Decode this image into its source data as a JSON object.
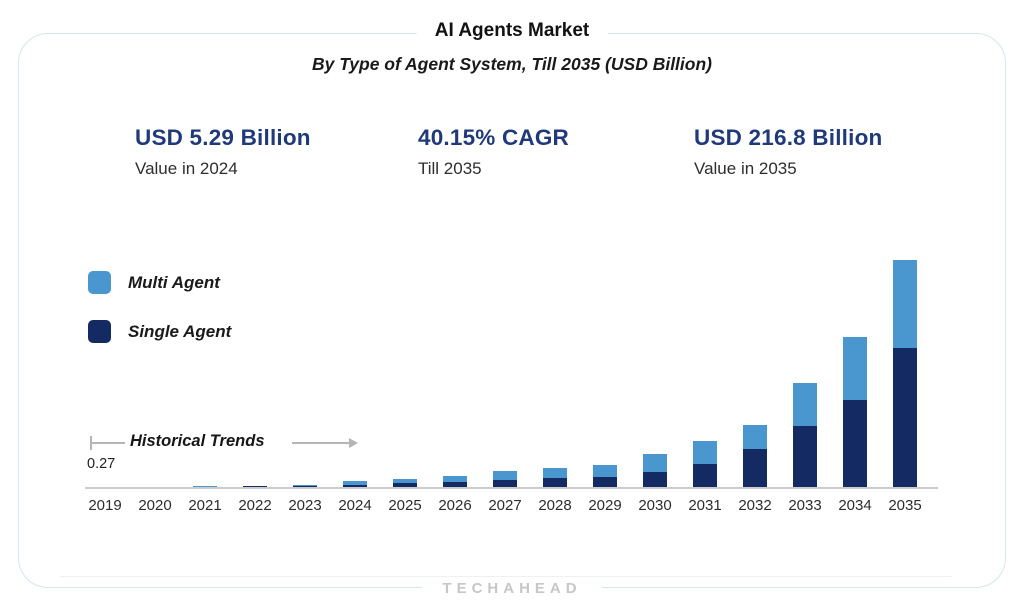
{
  "header": {
    "title": "AI Agents Market",
    "subtitle": "By Type of Agent System, Till 2035 (USD Billion)"
  },
  "stats": [
    {
      "value": "USD 5.29 Billion",
      "label": "Value in 2024"
    },
    {
      "value": "40.15% CAGR",
      "label": "Till 2035"
    },
    {
      "value": "USD 216.8 Billion",
      "label": "Value in 2035"
    }
  ],
  "legend": [
    {
      "label": "Multi Agent",
      "color": "#4a96cf"
    },
    {
      "label": "Single Agent",
      "color": "#132a63"
    }
  ],
  "annotation": {
    "text": "Historical Trends",
    "first_bar_label": "0.27"
  },
  "footer": {
    "logo": "TECHAHEAD"
  },
  "colors": {
    "multi_agent": "#4a96cf",
    "single_agent": "#132a63",
    "stat_text": "#20397a",
    "card_border": "#d5e7f0",
    "axis": "#cbcbcb",
    "arrow": "#b5b5b5"
  },
  "chart_data": {
    "type": "bar",
    "stacked": true,
    "title": "AI Agents Market",
    "subtitle": "By Type of Agent System, Till 2035 (USD Billion)",
    "ylabel": "USD Billion",
    "ylim": [
      0,
      216.8
    ],
    "grid": false,
    "legend_position": "upper-left",
    "categories": [
      "2019",
      "2020",
      "2021",
      "2022",
      "2023",
      "2024",
      "2025",
      "2026",
      "2027",
      "2028",
      "2029",
      "2030",
      "2031",
      "2032",
      "2033",
      "2034",
      "2035"
    ],
    "series": [
      {
        "name": "Multi Agent",
        "color": "#4a96cf",
        "values": [
          0.12,
          0.25,
          0.4,
          0.65,
          1.1,
          2.89,
          4.0,
          6.0,
          8.2,
          10.2,
          11.5,
          17.0,
          22.3,
          22.7,
          41.4,
          60.8,
          84.4
        ]
      },
      {
        "name": "Single Agent",
        "color": "#132a63",
        "values": [
          0.15,
          0.2,
          0.35,
          0.55,
          0.9,
          2.4,
          3.5,
          4.8,
          6.7,
          8.3,
          9.6,
          14.4,
          21.7,
          36.6,
          58.3,
          82.9,
          132.4
        ]
      }
    ],
    "totals": [
      0.27,
      0.45,
      0.75,
      1.2,
      2.0,
      5.29,
      7.5,
      10.8,
      14.9,
      18.5,
      21.1,
      31.4,
      44.0,
      59.3,
      99.7,
      143.7,
      216.8
    ],
    "annotations": [
      {
        "text": "Historical Trends",
        "span": [
          "2019",
          "2024"
        ]
      },
      {
        "text": "0.27",
        "at": "2019"
      }
    ]
  }
}
